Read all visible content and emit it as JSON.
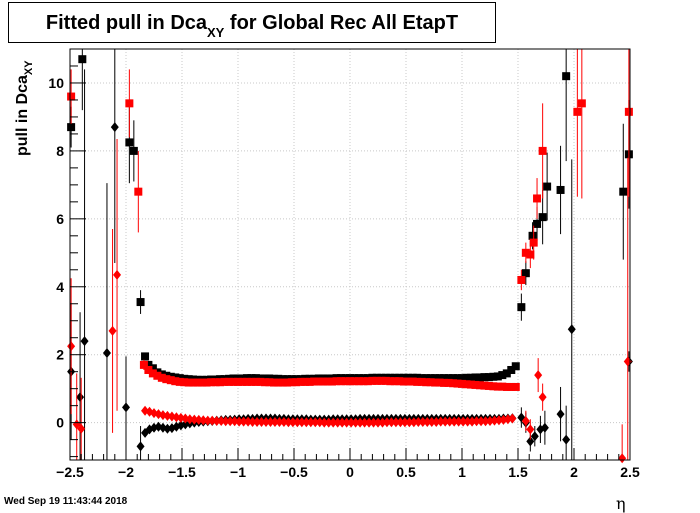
{
  "chart_data": {
    "type": "scatter",
    "title_main": "Fitted pull in Dca",
    "title_sub": "XY",
    "title_rest": " for Global Rec All EtapT",
    "xlabel": "η",
    "ylabel_main": "pull in Dca",
    "ylabel_sub": "XY",
    "xlim": [
      -2.5,
      2.5
    ],
    "ylim": [
      -1.1,
      11.0
    ],
    "grid": true,
    "x_ticks": [
      -2.5,
      -2,
      -1.5,
      -1,
      -0.5,
      0,
      0.5,
      1,
      1.5,
      2,
      2.5
    ],
    "x_tick_labels": [
      "−2.5",
      "−2",
      "−1.5",
      "−1",
      "−0.5",
      "0",
      "0.5",
      "1",
      "1.5",
      "2",
      "2.5"
    ],
    "y_ticks": [
      0,
      2,
      4,
      6,
      8,
      10
    ],
    "y_tick_labels": [
      "0",
      "2",
      "4",
      "6",
      "8",
      "10"
    ],
    "series": [
      {
        "marker": "square",
        "color": "#000000",
        "points": [
          {
            "x": -2.49,
            "y": 8.7,
            "e": 0.6
          },
          {
            "x": -2.39,
            "y": 10.7,
            "e": 1.5
          },
          {
            "x": -1.97,
            "y": 8.25,
            "e": 1.2
          },
          {
            "x": -1.93,
            "y": 8.0,
            "e": 0.9
          },
          {
            "x": -1.87,
            "y": 3.55,
            "e": 0.35
          },
          {
            "x": -1.83,
            "y": 1.95,
            "e": 0.1
          },
          {
            "x": 1.53,
            "y": 3.4,
            "e": 0.4
          },
          {
            "x": 1.57,
            "y": 4.4,
            "e": 0.35
          },
          {
            "x": 1.63,
            "y": 5.5,
            "e": 0.4
          },
          {
            "x": 1.67,
            "y": 5.85,
            "e": 0.5
          },
          {
            "x": 1.72,
            "y": 6.05,
            "e": 0.8
          },
          {
            "x": 1.76,
            "y": 6.95,
            "e": 1.0
          },
          {
            "x": 1.88,
            "y": 6.85,
            "e": 1.3
          },
          {
            "x": 1.93,
            "y": 10.2,
            "e": 2.5
          },
          {
            "x": 2.44,
            "y": 6.8,
            "e": 2.0
          },
          {
            "x": 2.49,
            "y": 7.9,
            "e": 1.6
          }
        ],
        "band": {
          "from": -1.8,
          "to": 1.48,
          "step": 0.04,
          "values": [
            1.7,
            1.6,
            1.48,
            1.42,
            1.38,
            1.35,
            1.33,
            1.31,
            1.29,
            1.28,
            1.27,
            1.26,
            1.26,
            1.26,
            1.27,
            1.27,
            1.28,
            1.28,
            1.29,
            1.3,
            1.3,
            1.3,
            1.31,
            1.31,
            1.31,
            1.3,
            1.3,
            1.3,
            1.29,
            1.29,
            1.28,
            1.28,
            1.28,
            1.28,
            1.28,
            1.29,
            1.29,
            1.29,
            1.3,
            1.3,
            1.3,
            1.3,
            1.31,
            1.31,
            1.31,
            1.31,
            1.31,
            1.31,
            1.31,
            1.31,
            1.32,
            1.32,
            1.32,
            1.32,
            1.32,
            1.32,
            1.32,
            1.32,
            1.32,
            1.32,
            1.32,
            1.31,
            1.31,
            1.31,
            1.31,
            1.31,
            1.31,
            1.31,
            1.31,
            1.31,
            1.31,
            1.32,
            1.32,
            1.33,
            1.33,
            1.34,
            1.34,
            1.35,
            1.36,
            1.4,
            1.45,
            1.55,
            1.66
          ]
        }
      },
      {
        "marker": "square",
        "color": "#ff0000",
        "points": [
          {
            "x": -2.49,
            "y": 9.6,
            "e": 0.8
          },
          {
            "x": -1.97,
            "y": 9.4,
            "e": 1.0
          },
          {
            "x": -1.89,
            "y": 6.8,
            "e": 1.2
          },
          {
            "x": -1.84,
            "y": 1.7,
            "e": 0.15
          },
          {
            "x": 1.53,
            "y": 4.2,
            "e": 0.3
          },
          {
            "x": 1.57,
            "y": 5.0,
            "e": 0.3
          },
          {
            "x": 1.61,
            "y": 4.95,
            "e": 0.4
          },
          {
            "x": 1.64,
            "y": 5.3,
            "e": 0.5
          },
          {
            "x": 1.67,
            "y": 6.6,
            "e": 0.6
          },
          {
            "x": 1.72,
            "y": 8.0,
            "e": 1.4
          },
          {
            "x": 2.03,
            "y": 9.15,
            "e": 2.5
          },
          {
            "x": 2.07,
            "y": 9.4,
            "e": 2.8
          },
          {
            "x": 2.49,
            "y": 9.15,
            "e": 2.5
          }
        ],
        "band": {
          "from": -1.8,
          "to": 1.48,
          "step": 0.04,
          "values": [
            1.55,
            1.45,
            1.38,
            1.32,
            1.28,
            1.25,
            1.22,
            1.2,
            1.19,
            1.18,
            1.18,
            1.18,
            1.18,
            1.18,
            1.19,
            1.19,
            1.19,
            1.2,
            1.2,
            1.2,
            1.2,
            1.2,
            1.2,
            1.2,
            1.2,
            1.2,
            1.19,
            1.19,
            1.18,
            1.18,
            1.18,
            1.18,
            1.19,
            1.19,
            1.2,
            1.2,
            1.2,
            1.21,
            1.21,
            1.21,
            1.21,
            1.21,
            1.22,
            1.22,
            1.22,
            1.22,
            1.22,
            1.22,
            1.22,
            1.22,
            1.23,
            1.23,
            1.23,
            1.23,
            1.22,
            1.22,
            1.22,
            1.21,
            1.21,
            1.21,
            1.2,
            1.2,
            1.19,
            1.19,
            1.18,
            1.18,
            1.17,
            1.17,
            1.16,
            1.15,
            1.14,
            1.13,
            1.12,
            1.11,
            1.1,
            1.09,
            1.08,
            1.07,
            1.06,
            1.06,
            1.05,
            1.05,
            1.05
          ]
        }
      },
      {
        "marker": "diamond",
        "color": "#000000",
        "points": [
          {
            "x": -2.49,
            "y": 1.5,
            "e": 2.0
          },
          {
            "x": -2.41,
            "y": 0.75,
            "e": 2.5
          },
          {
            "x": -2.37,
            "y": 2.4,
            "e": 8.0
          },
          {
            "x": -2.17,
            "y": 2.05,
            "e": 5.0
          },
          {
            "x": -2.1,
            "y": 8.7,
            "e": 4.0
          },
          {
            "x": -2.0,
            "y": 0.45,
            "e": 1.5
          },
          {
            "x": -1.87,
            "y": -0.7,
            "e": 0.6
          },
          {
            "x": 1.53,
            "y": 0.15,
            "e": 0.3
          },
          {
            "x": 1.57,
            "y": 0.0,
            "e": 0.3
          },
          {
            "x": 1.61,
            "y": -0.55,
            "e": 0.3
          },
          {
            "x": 1.65,
            "y": -0.4,
            "e": 0.3
          },
          {
            "x": 1.7,
            "y": -0.2,
            "e": 0.4
          },
          {
            "x": 1.74,
            "y": -0.15,
            "e": 0.5
          },
          {
            "x": 1.88,
            "y": 0.25,
            "e": 0.8
          },
          {
            "x": 1.93,
            "y": -0.5,
            "e": 1.0
          },
          {
            "x": 1.98,
            "y": 2.75,
            "e": 5.0
          },
          {
            "x": 2.49,
            "y": 1.8,
            "e": 0.3
          }
        ],
        "band": {
          "from": -1.83,
          "to": 1.48,
          "step": 0.04,
          "values": [
            -0.3,
            -0.2,
            -0.15,
            -0.12,
            -0.15,
            -0.18,
            -0.16,
            -0.12,
            -0.08,
            -0.05,
            -0.02,
            0.0,
            0.02,
            0.03,
            0.04,
            0.05,
            0.06,
            0.07,
            0.08,
            0.08,
            0.09,
            0.1,
            0.1,
            0.11,
            0.11,
            0.12,
            0.12,
            0.12,
            0.12,
            0.12,
            0.11,
            0.11,
            0.1,
            0.1,
            0.1,
            0.1,
            0.1,
            0.09,
            0.09,
            0.09,
            0.09,
            0.09,
            0.1,
            0.1,
            0.1,
            0.1,
            0.1,
            0.1,
            0.11,
            0.11,
            0.11,
            0.11,
            0.11,
            0.11,
            0.11,
            0.11,
            0.11,
            0.11,
            0.11,
            0.11,
            0.11,
            0.11,
            0.11,
            0.11,
            0.11,
            0.11,
            0.11,
            0.11,
            0.11,
            0.11,
            0.11,
            0.11,
            0.11,
            0.11,
            0.11,
            0.11,
            0.11,
            0.11,
            0.11,
            0.11,
            0.12,
            0.12,
            0.13
          ]
        }
      },
      {
        "marker": "diamond",
        "color": "#ff0000",
        "points": [
          {
            "x": -2.49,
            "y": 2.25,
            "e": 2.0
          },
          {
            "x": -2.44,
            "y": -0.05,
            "e": 1.5
          },
          {
            "x": -2.4,
            "y": -0.18,
            "e": 1.5
          },
          {
            "x": -2.12,
            "y": 2.7,
            "e": 3.0
          },
          {
            "x": -2.08,
            "y": 4.35,
            "e": 4.0
          },
          {
            "x": 1.57,
            "y": 0.05,
            "e": 0.3
          },
          {
            "x": 1.61,
            "y": -0.2,
            "e": 0.3
          },
          {
            "x": 1.68,
            "y": 1.4,
            "e": 0.5
          },
          {
            "x": 1.72,
            "y": 0.75,
            "e": 0.4
          },
          {
            "x": 2.43,
            "y": -1.05,
            "e": 1.0
          },
          {
            "x": 2.48,
            "y": 1.8,
            "e": 6.0
          }
        ],
        "band": {
          "from": -1.83,
          "to": 1.48,
          "step": 0.04,
          "values": [
            0.35,
            0.32,
            0.28,
            0.25,
            0.22,
            0.2,
            0.18,
            0.16,
            0.14,
            0.12,
            0.1,
            0.09,
            0.08,
            0.07,
            0.06,
            0.06,
            0.05,
            0.05,
            0.04,
            0.04,
            0.04,
            0.03,
            0.03,
            0.03,
            0.02,
            0.02,
            0.02,
            0.02,
            0.02,
            0.02,
            0.02,
            0.02,
            0.01,
            0.01,
            0.01,
            0.01,
            0.01,
            0.01,
            0.01,
            0.01,
            0.0,
            0.0,
            0.0,
            0.0,
            0.0,
            0.0,
            0.0,
            0.0,
            0.0,
            0.0,
            0.0,
            0.0,
            0.0,
            0.0,
            0.01,
            0.01,
            0.01,
            0.01,
            0.01,
            0.01,
            0.01,
            0.02,
            0.02,
            0.02,
            0.02,
            0.02,
            0.03,
            0.03,
            0.03,
            0.03,
            0.03,
            0.03,
            0.03,
            0.03,
            0.04,
            0.04,
            0.04,
            0.05,
            0.06,
            0.07,
            0.08,
            0.1,
            0.12
          ]
        }
      }
    ]
  },
  "footer_timestamp": "Wed Sep 19 11:43:44 2018"
}
